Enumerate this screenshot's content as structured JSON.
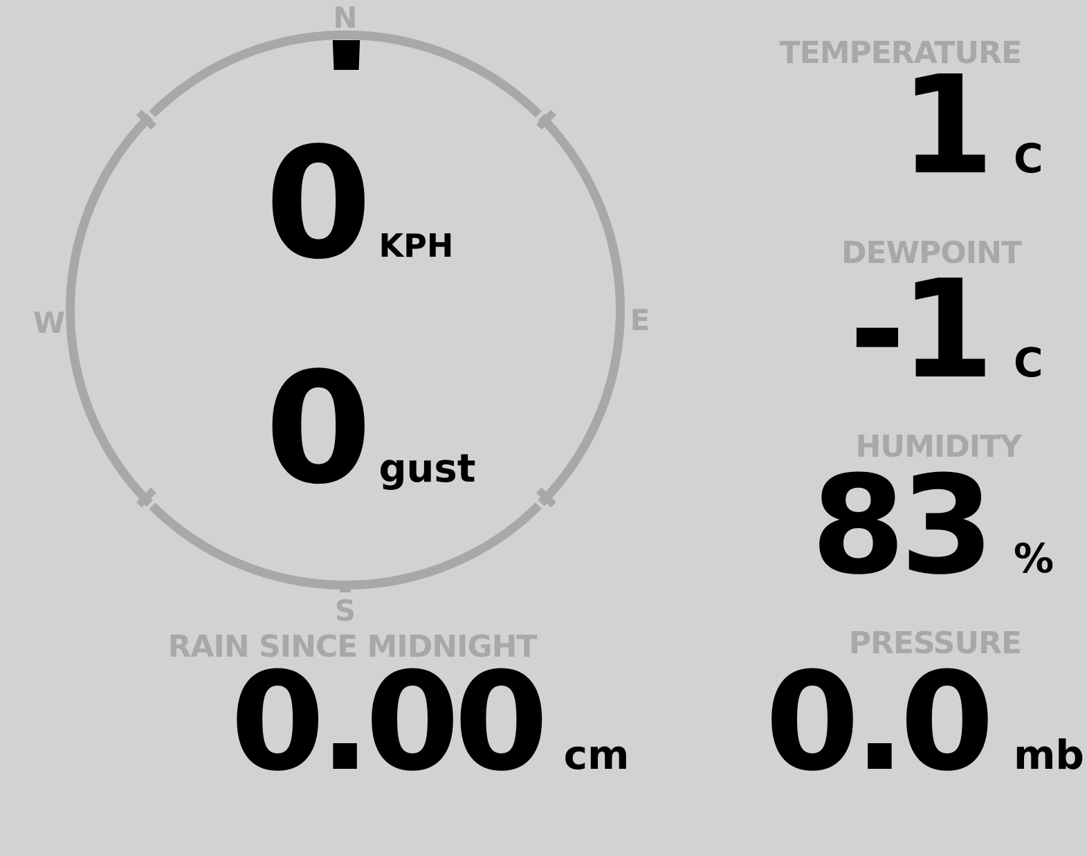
{
  "colors": {
    "background": "#d2d2d2",
    "muted": "#a8a8a8",
    "ink": "#000000"
  },
  "compass": {
    "north_label": "N",
    "east_label": "E",
    "south_label": "S",
    "west_label": "W",
    "indicator_direction": "N",
    "indicator_degrees": 0,
    "speed": {
      "value": "0",
      "unit": "KPH"
    },
    "gust": {
      "value": "0",
      "unit": "gust"
    }
  },
  "metrics": {
    "temperature": {
      "label": "TEMPERATURE",
      "value": "1",
      "unit": "C"
    },
    "dewpoint": {
      "label": "DEWPOINT",
      "value": "-1",
      "unit": "C"
    },
    "humidity": {
      "label": "HUMIDITY",
      "value": "83",
      "unit": "%"
    },
    "pressure": {
      "label": "PRESSURE",
      "value": "0.0",
      "unit": "mb"
    },
    "rain": {
      "label": "RAIN SINCE MIDNIGHT",
      "value": "0.00",
      "unit": "cm"
    }
  }
}
